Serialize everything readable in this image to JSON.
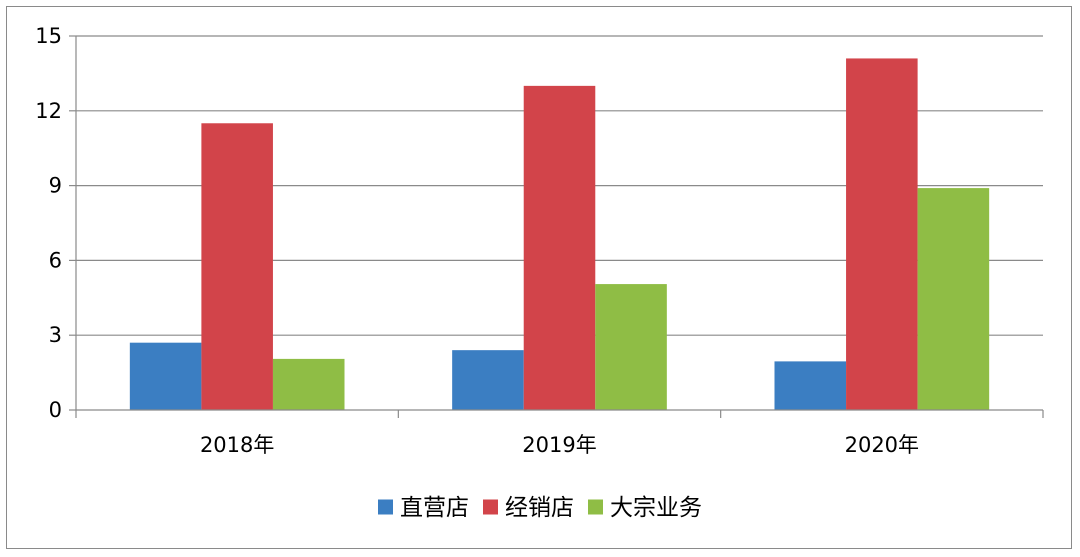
{
  "chart_data": {
    "type": "bar",
    "categories": [
      "2018年",
      "2019年",
      "2020年"
    ],
    "series": [
      {
        "name": "直营店",
        "values": [
          2.7,
          2.4,
          1.95
        ],
        "color": "#3b7ec2"
      },
      {
        "name": "经销店",
        "values": [
          11.5,
          13.0,
          14.1
        ],
        "color": "#d2444a"
      },
      {
        "name": "大宗业务",
        "values": [
          2.05,
          5.05,
          8.9
        ],
        "color": "#8fbd45"
      }
    ],
    "y_ticks": [
      "0",
      "3",
      "6",
      "9",
      "12",
      "15"
    ],
    "ylim": [
      0,
      15
    ],
    "grid": true,
    "legend_position": "bottom",
    "title": "",
    "xlabel": "",
    "ylabel": ""
  }
}
